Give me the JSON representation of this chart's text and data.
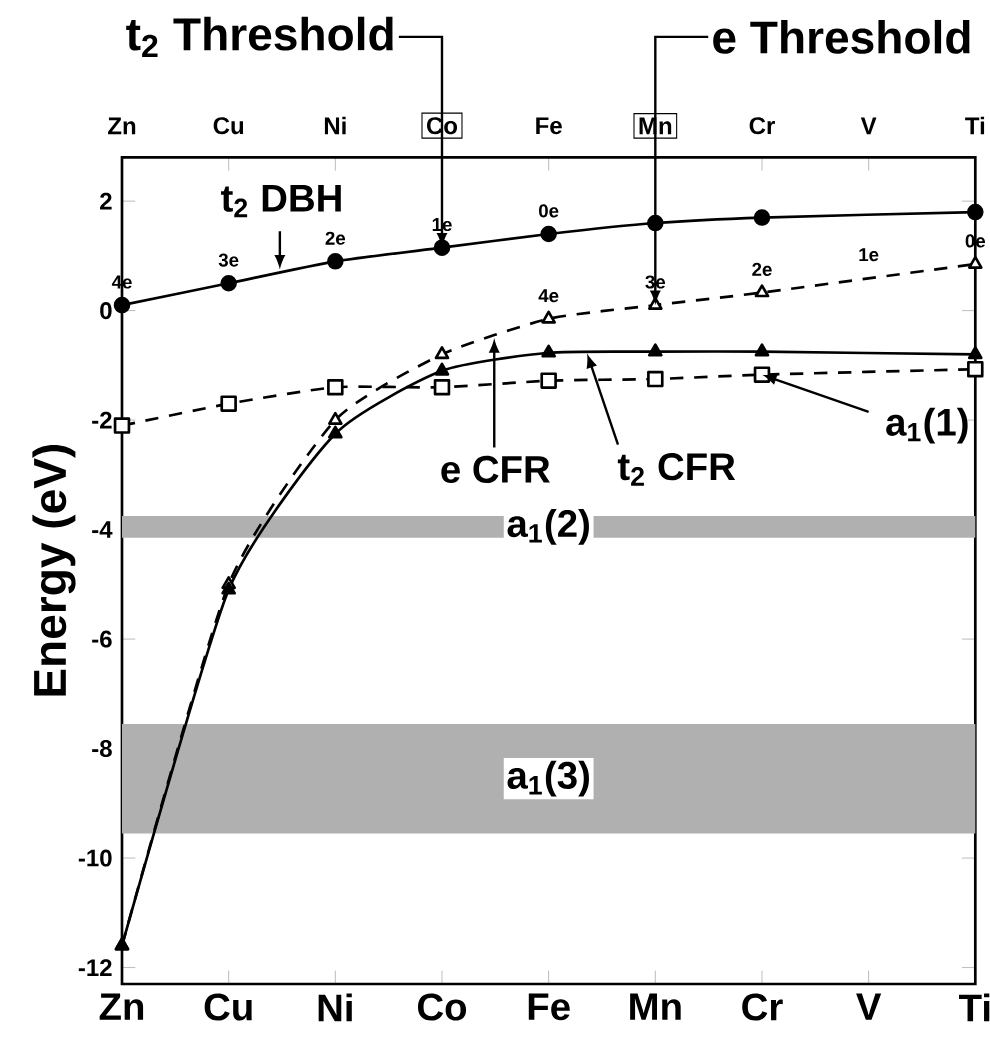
{
  "chart_data": {
    "type": "line",
    "categories": [
      "Zn",
      "Cu",
      "Ni",
      "Co",
      "Fe",
      "Mn",
      "Cr",
      "V",
      "Ti"
    ],
    "ylabel": "Energy (eV)",
    "ylim": [
      -12.3,
      2.8
    ],
    "yticks": [
      -12,
      -10,
      -8,
      -6,
      -4,
      -2,
      0,
      2
    ],
    "series": [
      {
        "color": "#000000",
        "marker": "circle",
        "line_style": "solid",
        "values": [
          0.1,
          0.5,
          0.9,
          1.15,
          1.4,
          1.6,
          1.7,
          null,
          1.8
        ]
      },
      {
        "color": "#000000",
        "marker": "triangle",
        "line_style": "dashed",
        "values": [
          -11.6,
          -5.0,
          -2.0,
          -0.8,
          -0.15,
          0.1,
          0.33,
          null,
          0.85
        ]
      },
      {
        "color": "#000000",
        "marker": "triangle",
        "line_style": "solid",
        "values": [
          -11.6,
          -5.1,
          -2.25,
          -1.1,
          -0.77,
          -0.75,
          -0.75,
          null,
          -0.8
        ]
      },
      {
        "color": "#000000",
        "marker": "square",
        "line_style": "dashed",
        "values": [
          -2.1,
          -1.7,
          -1.4,
          -1.4,
          -1.28,
          -1.25,
          -1.17,
          null,
          -1.07
        ]
      }
    ],
    "bands": [
      {
        "axis": "y",
        "from": -4.15,
        "to": -3.75,
        "label": "a$_{1}$(2)",
        "color": "#b0b0b0"
      },
      {
        "axis": "y",
        "from": -9.55,
        "to": -7.55,
        "label": "a$_{1}$(3)",
        "color": "#b0b0b0"
      }
    ],
    "annotations": [
      {
        "text": "t$_{2}$ Threshold",
        "x": "Co",
        "y": 1.15
      },
      {
        "text": "e Threshold",
        "x": "Mn",
        "y": 0.1
      },
      {
        "text": "t$_{2}$ DBH",
        "y": 0.75
      },
      {
        "text": "e CFR",
        "y": -0.5
      },
      {
        "text": "t$_{2}$ CFR",
        "y": -0.78
      },
      {
        "text": "a$_{1}$(1)",
        "x": "Cr",
        "y": -1.17
      },
      {
        "text": "4e",
        "x": "Zn",
        "y": 0.1
      },
      {
        "text": "3e",
        "x": "Cu",
        "y": 0.5
      },
      {
        "text": "2e",
        "x": "Ni",
        "y": 0.9
      },
      {
        "text": "1e",
        "x": "Co",
        "y": 1.15
      },
      {
        "text": "0e",
        "x": "Fe",
        "y": 1.4
      },
      {
        "text": "4e",
        "x": "Fe",
        "y": -0.15
      },
      {
        "text": "3e",
        "x": "Mn",
        "y": 0.1
      },
      {
        "text": "2e",
        "x": "Cr",
        "y": 0.33
      },
      {
        "text": "1e",
        "x": "V",
        "y": 0.6
      },
      {
        "text": "0e",
        "x": "Ti",
        "y": 0.85
      }
    ]
  }
}
